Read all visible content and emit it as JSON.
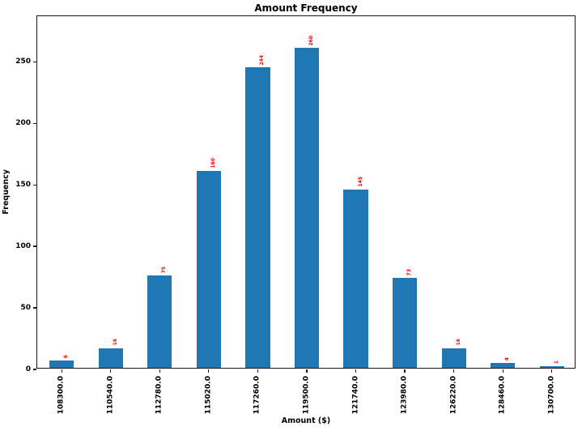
{
  "chart_data": {
    "type": "bar",
    "title": "Amount Frequency",
    "xlabel": "Amount ($)",
    "ylabel": "Frequency",
    "categories": [
      "108300.0",
      "110540.0",
      "112780.0",
      "115020.0",
      "117260.0",
      "119500.0",
      "121740.0",
      "123980.0",
      "126220.0",
      "128460.0",
      "130700.0"
    ],
    "values": [
      6,
      16,
      75,
      160,
      244,
      260,
      145,
      73,
      16,
      4,
      1
    ],
    "bar_value_labels": [
      "6",
      "16",
      "75",
      "160",
      "244",
      "260",
      "145",
      "73",
      "16",
      "4",
      "1"
    ],
    "yticks": [
      0,
      50,
      100,
      150,
      200,
      250
    ],
    "ylim": [
      0,
      287
    ],
    "bar_color": "#1f77b4",
    "value_label_color": "#ff0000",
    "xtick_rotation": 90,
    "value_label_rotation": 90,
    "grid": false,
    "legend": "none"
  }
}
